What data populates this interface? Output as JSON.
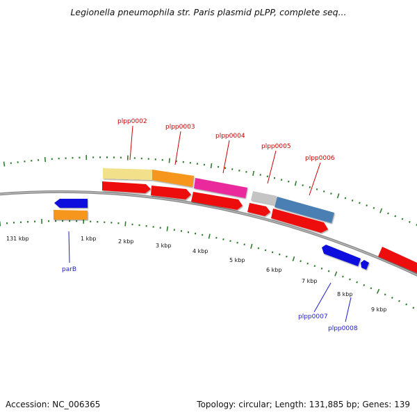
{
  "title": "Legionella pneumophila str. Paris plasmid pLPP, complete seq...",
  "footer": {
    "accession": "Accession: NC_006365",
    "summary": "Topology: circular; Length: 131,885 bp; Genes: 139"
  },
  "colors": {
    "backbone": "#8a8a8a",
    "ticks": "#2f7d2f",
    "label_red": "#cc0000",
    "label_blue": "#1a1acc"
  },
  "ticks": [
    "131 kbp",
    "1 kbp",
    "2 kbp",
    "3 kbp",
    "4 kbp",
    "5 kbp",
    "6 kbp",
    "7 kbp",
    "8 kbp",
    "9 kbp"
  ],
  "genes": [
    {
      "label": "plpp0002",
      "strand": "+"
    },
    {
      "label": "plpp0003",
      "strand": "+"
    },
    {
      "label": "plpp0004",
      "strand": "+"
    },
    {
      "label": "plpp0005",
      "strand": "+"
    },
    {
      "label": "plpp0006",
      "strand": "+"
    },
    {
      "label": "parB",
      "strand": "-"
    },
    {
      "label": "plpp0007",
      "strand": "-"
    },
    {
      "label": "plpp0008",
      "strand": "-"
    }
  ],
  "feature_colors": {
    "cds_plus": "#ee1111",
    "cds_minus": "#1111dd",
    "cog_a": "#f2e08a",
    "cog_b": "#f7961e",
    "cog_c": "#ea2a9c",
    "cog_d": "#c4c4c4",
    "cog_e": "#4a7fb3",
    "cog_f": "#f7961e"
  }
}
